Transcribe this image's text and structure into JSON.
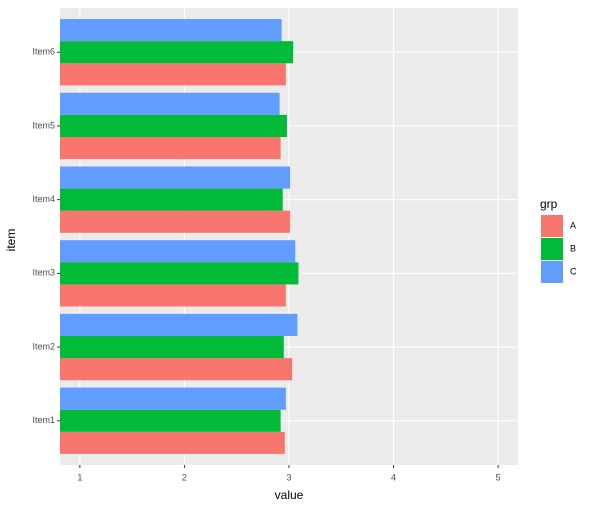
{
  "chart_data": {
    "type": "bar",
    "orientation": "horizontal",
    "categories": [
      "Item1",
      "Item2",
      "Item3",
      "Item4",
      "Item5",
      "Item6"
    ],
    "series": [
      {
        "name": "A",
        "color": "#F8766D",
        "values": [
          2.96,
          3.03,
          2.97,
          3.01,
          2.92,
          2.97
        ]
      },
      {
        "name": "B",
        "color": "#00BA38",
        "values": [
          2.92,
          2.95,
          3.09,
          2.94,
          2.98,
          3.04
        ]
      },
      {
        "name": "C",
        "color": "#619CFF",
        "values": [
          2.97,
          3.08,
          3.06,
          3.01,
          2.91,
          2.93
        ]
      }
    ],
    "xlabel": "value",
    "ylabel": "item",
    "legend_title": "grp",
    "xlim": [
      0.81,
      5.19
    ],
    "xticks": [
      1,
      2,
      3,
      4,
      5
    ],
    "grid": true
  }
}
